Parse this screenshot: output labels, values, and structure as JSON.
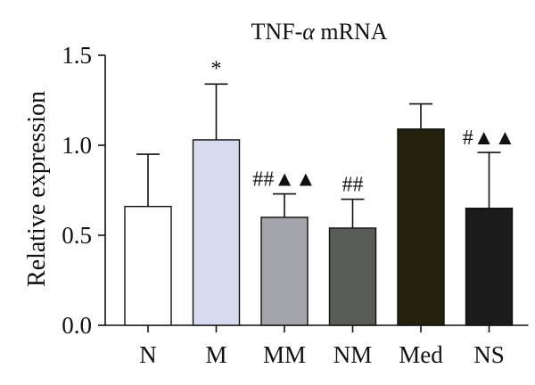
{
  "chart_data": {
    "type": "bar",
    "title": "TNF-α mRNA",
    "title_prefix": "TNF-",
    "title_symbol": "α",
    "title_suffix": " mRNA",
    "ylabel": "Relative expression",
    "xlabel": "",
    "ylim": [
      0.0,
      1.5
    ],
    "yticks": [
      0.0,
      0.5,
      1.0,
      1.5
    ],
    "ytick_labels": [
      "0.0",
      "0.5",
      "1.0",
      "1.5"
    ],
    "categories": [
      "N",
      "M",
      "MM",
      "NM",
      "Med",
      "NS"
    ],
    "values": [
      0.66,
      1.03,
      0.6,
      0.54,
      1.09,
      0.65
    ],
    "error_upper": [
      0.95,
      1.34,
      0.73,
      0.7,
      1.23,
      0.96
    ],
    "bar_colors": [
      "#ffffff",
      "#d8daf0",
      "#a4a4ab",
      "#5a5c58",
      "#23200b",
      "#1b1b1b"
    ],
    "annotations": [
      "",
      "*",
      "##▲▲",
      "##",
      "",
      "#▲▲"
    ],
    "grid": false,
    "legend": "none"
  }
}
